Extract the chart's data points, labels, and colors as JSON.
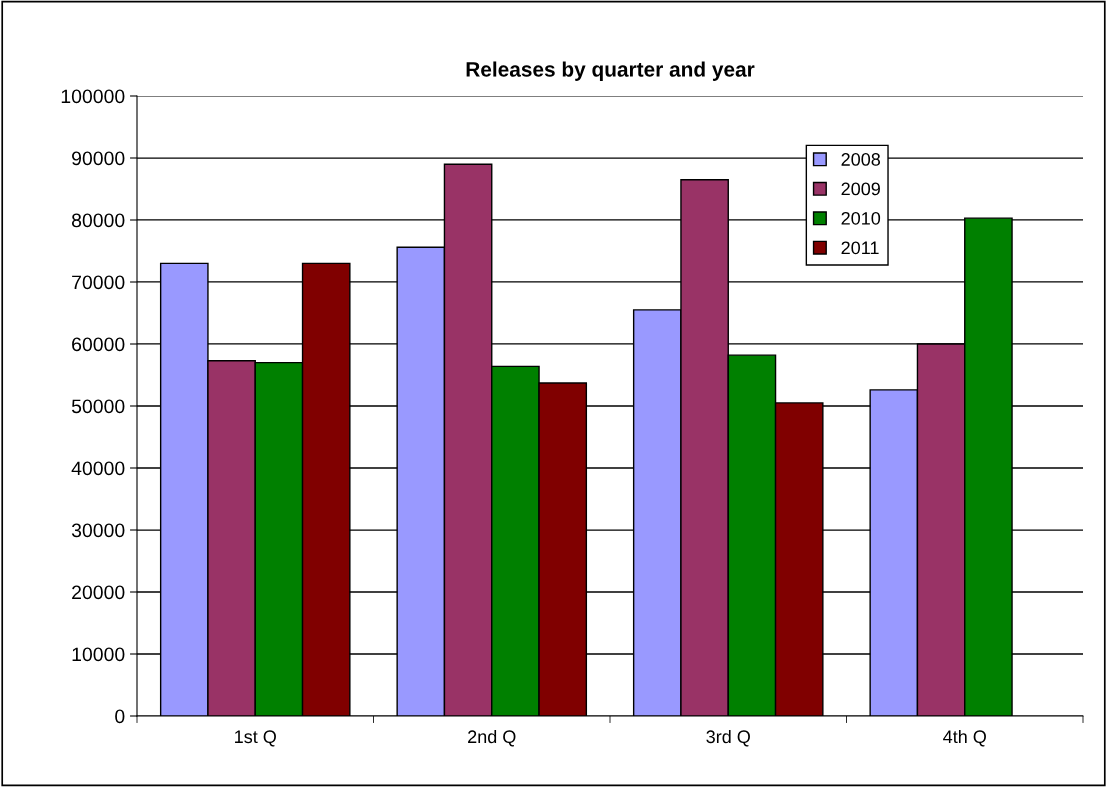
{
  "chart_data": {
    "type": "bar",
    "title": "Releases by quarter and year",
    "categories": [
      "1st Q",
      "2nd Q",
      "3rd Q",
      "4th Q"
    ],
    "series": [
      {
        "name": "2008",
        "color": "#9999ff",
        "values": [
          73000,
          75600,
          65500,
          52600
        ]
      },
      {
        "name": "2009",
        "color": "#993366",
        "values": [
          57300,
          89000,
          86500,
          60000
        ]
      },
      {
        "name": "2010",
        "color": "#008000",
        "values": [
          57000,
          56400,
          58200,
          80300
        ]
      },
      {
        "name": "2011",
        "color": "#800000",
        "values": [
          73000,
          53700,
          50500,
          null
        ]
      }
    ],
    "ylim": [
      0,
      100000
    ],
    "yticks": [
      0,
      10000,
      20000,
      30000,
      40000,
      50000,
      60000,
      70000,
      80000,
      90000,
      100000
    ],
    "grid": "y",
    "legend": "top right"
  }
}
